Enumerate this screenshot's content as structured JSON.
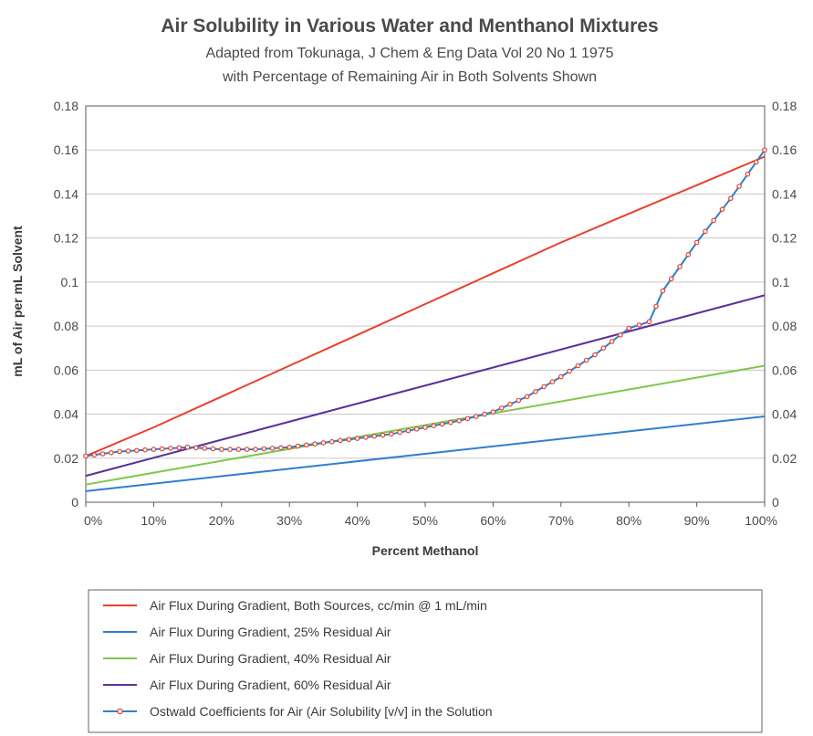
{
  "chart_data": {
    "type": "line",
    "title": "Air Solubility in Various Water and Menthanol Mixtures",
    "subtitle_lines": [
      "Adapted from Tokunaga, J Chem & Eng Data Vol 20 No 1 1975",
      "with Percentage of Remaining Air in Both Solvents Shown"
    ],
    "xlabel": "Percent Methanol",
    "ylabel": "mL of Air per mL Solvent",
    "xlim": [
      0,
      100
    ],
    "ylim": [
      0,
      0.18
    ],
    "x_ticks": [
      0,
      10,
      20,
      30,
      40,
      50,
      60,
      70,
      80,
      90,
      100
    ],
    "x_tick_labels": [
      "0%",
      "10%",
      "20%",
      "30%",
      "40%",
      "50%",
      "60%",
      "70%",
      "80%",
      "90%",
      "100%"
    ],
    "y_ticks": [
      0,
      0.02,
      0.04,
      0.06,
      0.08,
      0.1,
      0.12,
      0.14,
      0.16,
      0.18
    ],
    "y_tick_labels": [
      "0",
      "0.02",
      "0.04",
      "0.06",
      "0.08",
      "0.1",
      "0.12",
      "0.14",
      "0.16",
      "0.18"
    ],
    "grid": "horizontal",
    "secondary_y_axis": true,
    "legend_position": "bottom",
    "series": [
      {
        "name": "Air Flux During Gradient, Both Sources, cc/min @ 1 mL/min",
        "color": "#e8402e",
        "markers": false,
        "x": [
          0,
          10,
          20,
          30,
          40,
          50,
          60,
          70,
          80,
          90,
          100
        ],
        "y": [
          0.021,
          0.034,
          0.048,
          0.062,
          0.076,
          0.09,
          0.104,
          0.118,
          0.131,
          0.144,
          0.157
        ]
      },
      {
        "name": "Air Flux During Gradient, 25% Residual Air",
        "color": "#2f7fd0",
        "markers": false,
        "x": [
          0,
          100
        ],
        "y": [
          0.005,
          0.039
        ]
      },
      {
        "name": "Air Flux During Gradient, 40% Residual Air",
        "color": "#7dc94a",
        "markers": false,
        "x": [
          0,
          100
        ],
        "y": [
          0.008,
          0.062
        ]
      },
      {
        "name": "Air Flux During Gradient, 60% Residual Air",
        "color": "#5b2f9c",
        "markers": false,
        "x": [
          0,
          100
        ],
        "y": [
          0.012,
          0.094
        ]
      },
      {
        "name": "Ostwald Coefficients for Air (Air Solubility [v/v] in the Solution",
        "color": "#2f7fd0",
        "marker_color": "#e8402e",
        "markers": true,
        "x": [
          0,
          5,
          10,
          15,
          20,
          25,
          30,
          35,
          40,
          45,
          50,
          55,
          60,
          65,
          70,
          75,
          80,
          83,
          85,
          90,
          95,
          100
        ],
        "y": [
          0.021,
          0.023,
          0.024,
          0.025,
          0.024,
          0.024,
          0.025,
          0.027,
          0.029,
          0.031,
          0.034,
          0.037,
          0.041,
          0.048,
          0.057,
          0.067,
          0.079,
          0.082,
          0.096,
          0.118,
          0.138,
          0.16
        ]
      }
    ]
  }
}
